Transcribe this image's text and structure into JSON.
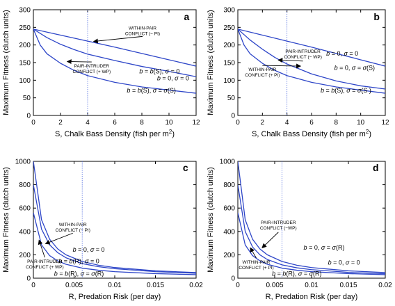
{
  "colors": {
    "curve": "#2e46c8",
    "vline": "#5570e0",
    "axis": "#000000",
    "text": "#000000"
  },
  "chart_data": [
    {
      "panel": "a",
      "type": "line",
      "ylabel": "Maximum Fitness (clutch units)",
      "xlabel": "S, Chalk Bass Density (fish per m",
      "xlabel_sup": "2",
      "xlabel_end": ")",
      "xlim": [
        0,
        12
      ],
      "ylim": [
        0,
        300
      ],
      "xticks": [
        0,
        2,
        4,
        6,
        8,
        10,
        12
      ],
      "yticks": [
        0,
        50,
        100,
        150,
        200,
        250,
        300
      ],
      "vline_x": 4,
      "series": [
        {
          "label": "b = 0, σ = 0",
          "x": [
            0,
            2,
            4,
            6,
            8,
            10,
            12
          ],
          "y": [
            245,
            228,
            211,
            194,
            176,
            158,
            140
          ]
        },
        {
          "label": "b = b(S), σ = 0",
          "x": [
            0,
            1,
            2,
            3,
            4,
            6,
            8,
            10,
            12
          ],
          "y": [
            245,
            221,
            202,
            187,
            174,
            156,
            139,
            125,
            110
          ]
        },
        {
          "label": "b = b(S), σ = σ(S)",
          "x": [
            0,
            0.5,
            1,
            2,
            3,
            4,
            6,
            8,
            10,
            12
          ],
          "y": [
            245,
            200,
            175,
            148,
            128,
            113,
            94,
            81,
            72,
            63
          ]
        }
      ],
      "annotations": [
        {
          "lines": [
            "WITHIN-PAIR",
            "CONFLICT (− PI)"
          ]
        },
        {
          "lines": [
            "PAIR-INTRUDER",
            "CONFLICT (+ WP)"
          ]
        }
      ]
    },
    {
      "panel": "b",
      "type": "line",
      "ylabel": "Maximum Fitness (clutch units)",
      "xlabel": "S, Chalk Bass Density (fish per m",
      "xlabel_sup": "2",
      "xlabel_end": ")",
      "xlim": [
        0,
        12
      ],
      "ylim": [
        0,
        300
      ],
      "xticks": [
        0,
        2,
        4,
        6,
        8,
        10,
        12
      ],
      "yticks": [
        0,
        50,
        100,
        150,
        200,
        250,
        300
      ],
      "vline_x": 4,
      "series": [
        {
          "label": "b = 0, σ = 0",
          "x": [
            0,
            2,
            4,
            6,
            8,
            10,
            12
          ],
          "y": [
            245,
            228,
            211,
            194,
            176,
            158,
            140
          ]
        },
        {
          "label": "b = 0, σ = σ(S)",
          "x": [
            0,
            1,
            2,
            3,
            4,
            6,
            8,
            10,
            12
          ],
          "y": [
            245,
            214,
            188,
            165,
            146,
            118,
            98,
            84,
            75
          ]
        },
        {
          "label": "b = b(S), σ = σ(S )",
          "x": [
            0,
            0.5,
            1,
            2,
            3,
            4,
            6,
            8,
            10,
            12
          ],
          "y": [
            245,
            200,
            175,
            148,
            128,
            113,
            94,
            81,
            72,
            63
          ]
        }
      ],
      "annotations": [
        {
          "lines": [
            "PAIR-INTRUDER",
            "CONFLICT (− WP)"
          ]
        },
        {
          "lines": [
            "WITHIN-PAIR",
            "CONFLICT (+ PI)"
          ]
        }
      ]
    },
    {
      "panel": "c",
      "type": "line",
      "ylabel": "Maximum Fitness (clutch units)",
      "xlabel": "R, Predation Risk (per day)",
      "xlim": [
        0,
        0.02
      ],
      "ylim": [
        0,
        1000
      ],
      "xticks": [
        0,
        0.005,
        0.01,
        0.015,
        0.02
      ],
      "xticklabels": [
        "0",
        "0.005",
        "0.01",
        "0.015",
        "0.02"
      ],
      "yticks": [
        0,
        200,
        400,
        600,
        800,
        1000
      ],
      "vline_x": 0.006,
      "series": [
        {
          "label": "b = 0, σ = 0",
          "x": [
            0,
            0.001,
            0.002,
            0.003,
            0.004,
            0.006,
            0.008,
            0.01,
            0.015,
            0.02
          ],
          "y": [
            1000,
            500,
            333,
            250,
            200,
            143,
            111,
            91,
            63,
            48
          ]
        },
        {
          "label": "b = b(R), σ = 0",
          "x": [
            0,
            0.001,
            0.002,
            0.003,
            0.004,
            0.006,
            0.008,
            0.01,
            0.015,
            0.02
          ],
          "y": [
            800,
            420,
            285,
            218,
            175,
            125,
            98,
            81,
            56,
            42
          ]
        },
        {
          "label": "b = b(R), σ = σ(R)",
          "x": [
            0,
            0.001,
            0.002,
            0.003,
            0.004,
            0.006,
            0.008,
            0.01,
            0.015,
            0.02
          ],
          "y": [
            560,
            285,
            193,
            148,
            119,
            86,
            68,
            56,
            39,
            30
          ]
        }
      ],
      "annotations": [
        {
          "lines": [
            "WITHIN-PAIR",
            "CONFLICT (− PI)"
          ]
        },
        {
          "lines": [
            "PAIR-INTRUDER",
            "CONFLICT (+ WP)"
          ]
        }
      ]
    },
    {
      "panel": "d",
      "type": "line",
      "ylabel": "Maximum Fitness (clutch units)",
      "xlabel": "R, Predation Risk (per day)",
      "xlim": [
        0,
        0.02
      ],
      "ylim": [
        0,
        1000
      ],
      "xticks": [
        0,
        0.005,
        0.01,
        0.015,
        0.02
      ],
      "xticklabels": [
        "0",
        "0.005",
        "0.01",
        "0.015",
        "0.02"
      ],
      "yticks": [
        0,
        200,
        400,
        600,
        800,
        1000
      ],
      "vline_x": 0.006,
      "series": [
        {
          "label": "b = 0, σ = 0",
          "x": [
            0,
            0.001,
            0.002,
            0.003,
            0.004,
            0.006,
            0.008,
            0.01,
            0.015,
            0.02
          ],
          "y": [
            1000,
            500,
            333,
            250,
            200,
            143,
            111,
            91,
            63,
            48
          ]
        },
        {
          "label": "b = 0, σ = σ(R)",
          "x": [
            0,
            0.001,
            0.002,
            0.003,
            0.004,
            0.006,
            0.008,
            0.01,
            0.015,
            0.02
          ],
          "y": [
            800,
            400,
            267,
            200,
            160,
            114,
            89,
            73,
            50,
            38
          ]
        },
        {
          "label": "b = b(R), σ = σ(R)",
          "x": [
            0,
            0.001,
            0.002,
            0.003,
            0.004,
            0.006,
            0.008,
            0.01,
            0.015,
            0.02
          ],
          "y": [
            560,
            285,
            193,
            148,
            119,
            86,
            68,
            56,
            39,
            30
          ]
        }
      ],
      "annotations": [
        {
          "lines": [
            "PAIR-INTRUDER",
            "CONFLICT (−WP)"
          ]
        },
        {
          "lines": [
            "WITHIN-PAIR",
            "CONFLICT (+ PI)"
          ]
        }
      ]
    }
  ]
}
